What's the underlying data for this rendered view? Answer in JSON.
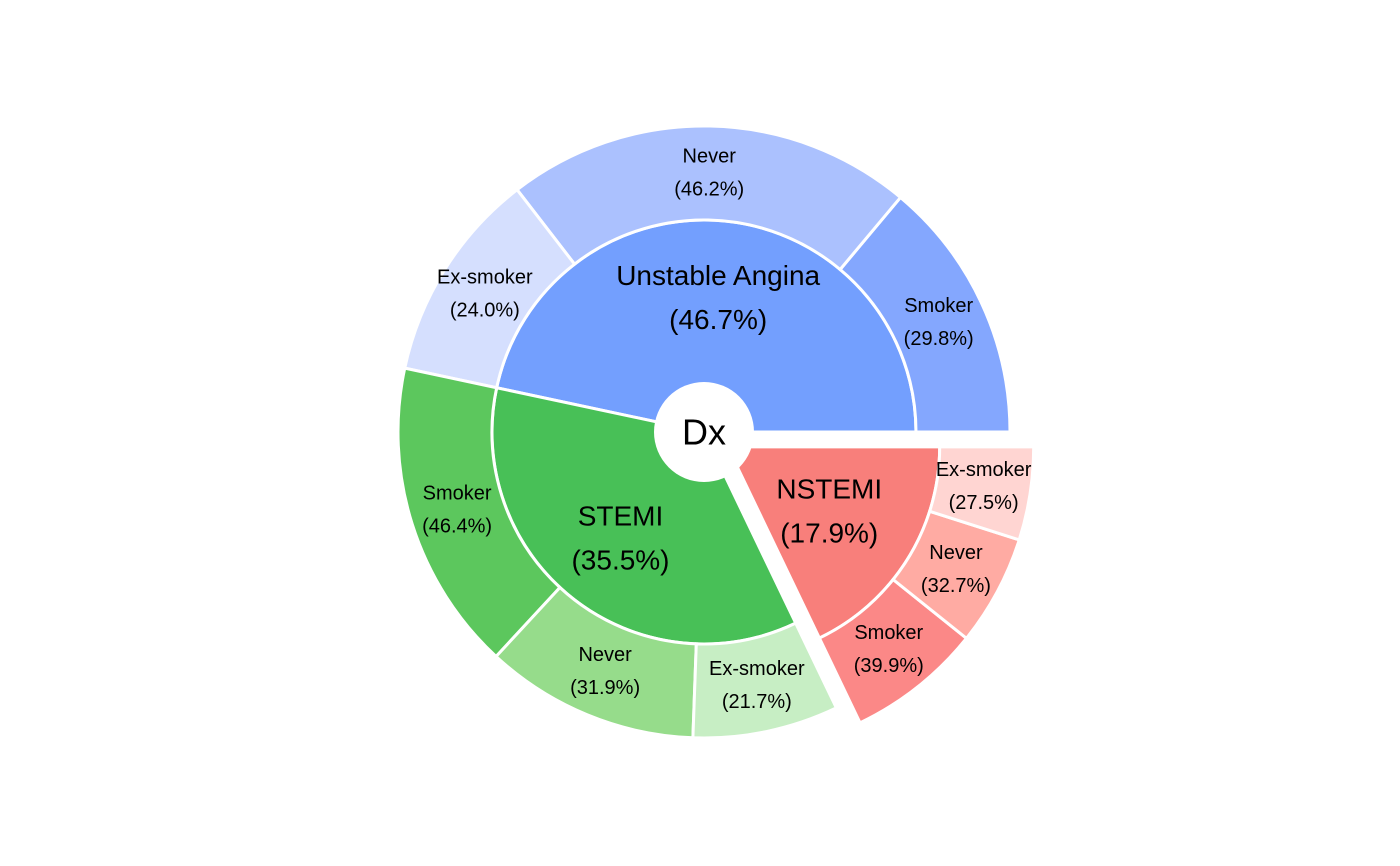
{
  "chart_data": {
    "type": "pie",
    "subtype": "sunburst",
    "center_label": "Dx",
    "groups": [
      {
        "name": "Unstable Angina",
        "percent_label": "(46.7%)",
        "share": 46.7,
        "color": "#739ffe",
        "children": [
          {
            "name": "Smoker",
            "percent_label": "(29.8%)",
            "share": 29.8,
            "color": "#84a7fe"
          },
          {
            "name": "Never",
            "percent_label": "(46.2%)",
            "share": 46.2,
            "color": "#abc1fe"
          },
          {
            "name": "Ex-smoker",
            "percent_label": "(24.0%)",
            "share": 24.0,
            "color": "#d5dffe"
          }
        ]
      },
      {
        "name": "STEMI",
        "percent_label": "(35.5%)",
        "share": 35.5,
        "color": "#48c057",
        "children": [
          {
            "name": "Smoker",
            "percent_label": "(46.4%)",
            "share": 46.4,
            "color": "#5cc75d"
          },
          {
            "name": "Never",
            "percent_label": "(31.9%)",
            "share": 31.9,
            "color": "#96dc8b"
          },
          {
            "name": "Ex-smoker",
            "percent_label": "(21.7%)",
            "share": 21.7,
            "color": "#c7eec4"
          }
        ]
      },
      {
        "name": "NSTEMI",
        "percent_label": "(17.9%)",
        "share": 17.9,
        "color": "#f87f7b",
        "exploded": true,
        "children": [
          {
            "name": "Smoker",
            "percent_label": "(39.9%)",
            "share": 39.9,
            "color": "#fb8887"
          },
          {
            "name": "Never",
            "percent_label": "(32.7%)",
            "share": 32.7,
            "color": "#ffaba3"
          },
          {
            "name": "Ex-smoker",
            "percent_label": "(27.5%)",
            "share": 27.5,
            "color": "#ffd5d2"
          }
        ]
      }
    ]
  }
}
